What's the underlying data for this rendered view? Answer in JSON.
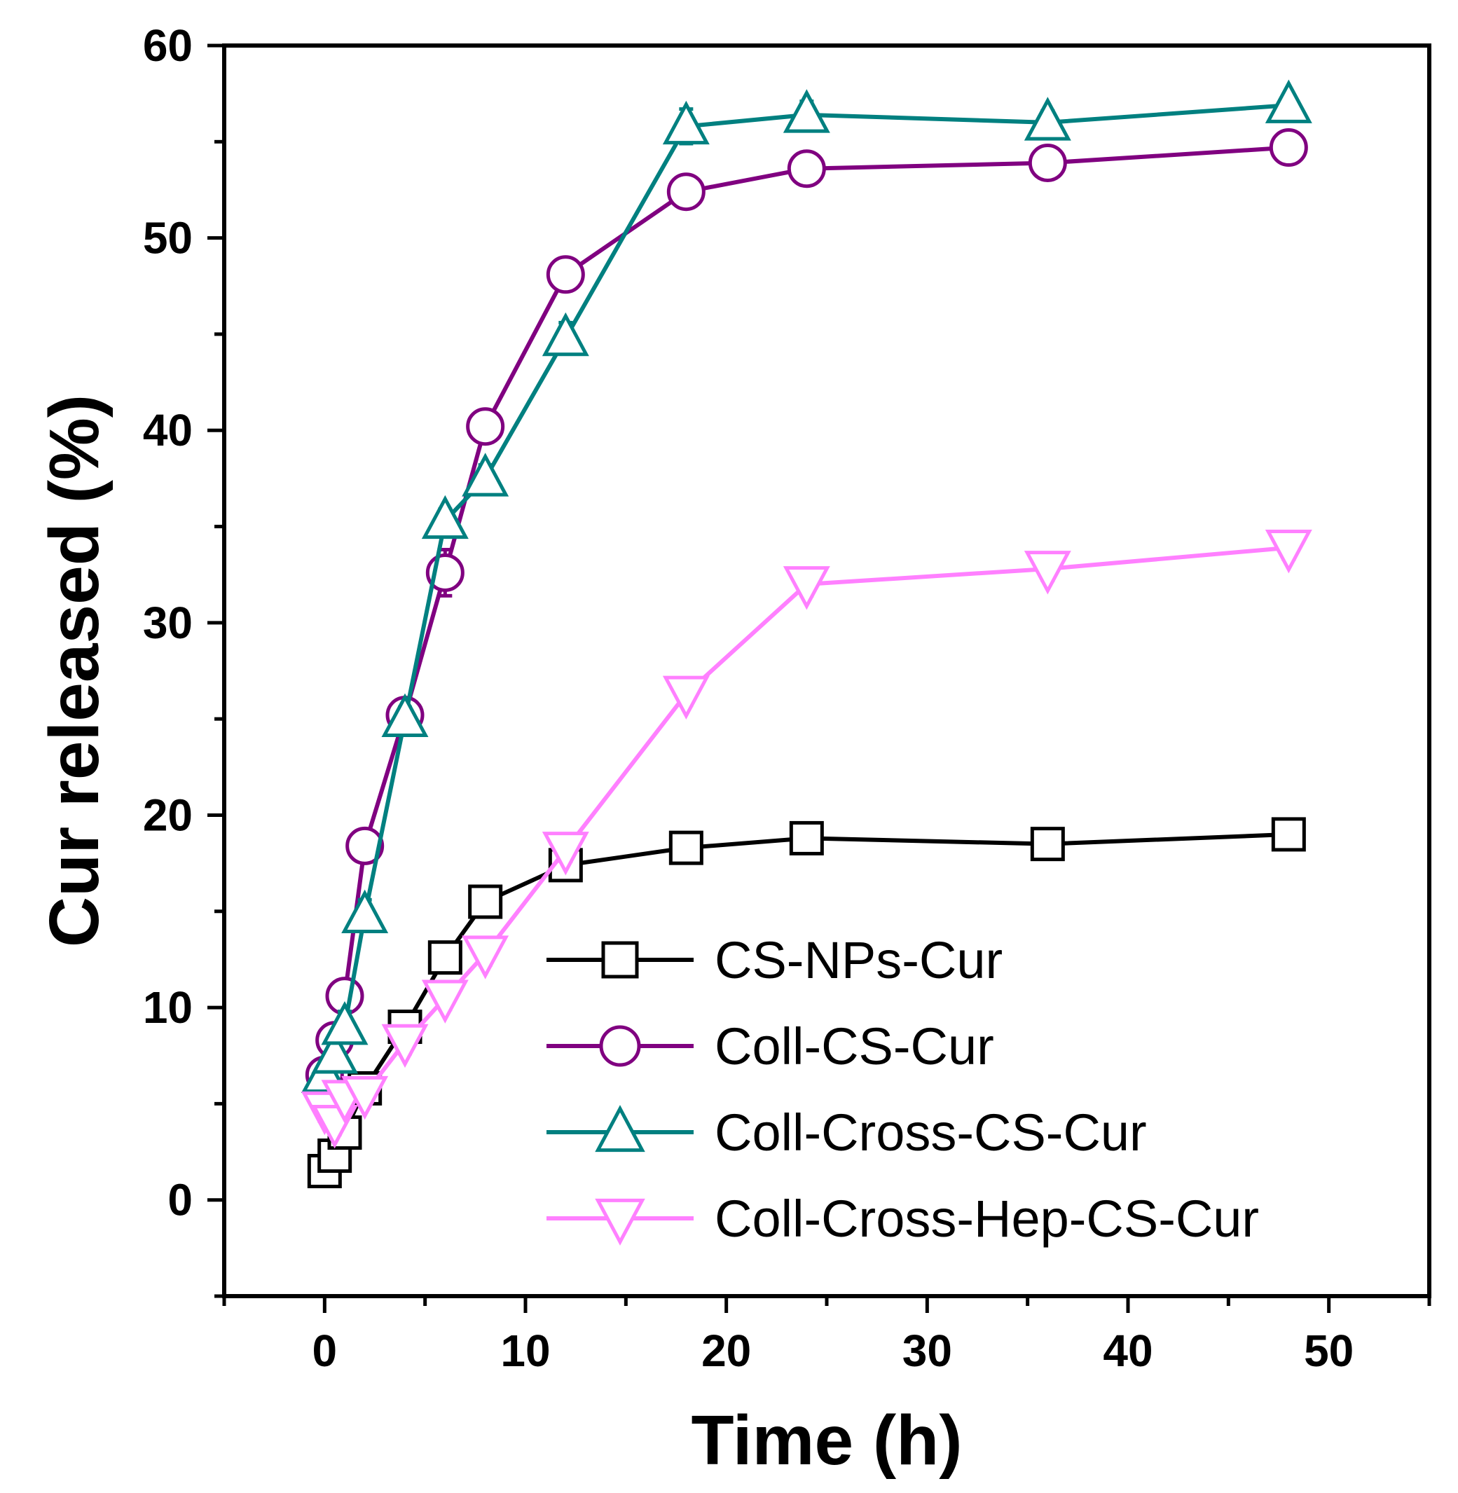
{
  "chart_data": {
    "type": "line",
    "title": "",
    "xlabel": "Time (h)",
    "ylabel": "Cur released (%)",
    "xlim": [
      -5,
      55
    ],
    "ylim": [
      -5,
      60
    ],
    "xticks": [
      0,
      10,
      20,
      30,
      40,
      50
    ],
    "yticks": [
      0,
      10,
      20,
      30,
      40,
      50,
      60
    ],
    "grid": false,
    "legend_position": "bottom-right",
    "x": [
      0,
      0.5,
      1,
      2,
      4,
      6,
      8,
      12,
      18,
      24,
      36,
      48
    ],
    "series": [
      {
        "name": "CS-NPs-Cur",
        "marker": "square",
        "color": "#000000",
        "values": [
          1.5,
          2.3,
          3.5,
          5.8,
          9.0,
          12.6,
          15.5,
          17.4,
          18.3,
          18.8,
          18.5,
          19.0
        ],
        "errors": [
          0.5,
          0.6,
          0.6,
          0.5,
          0.6,
          0.6,
          0.6,
          0.5,
          0.5,
          0.5,
          0.5,
          0.5
        ]
      },
      {
        "name": "Coll-CS-Cur",
        "marker": "circle",
        "color": "#800080",
        "values": [
          6.5,
          8.3,
          10.6,
          18.4,
          25.2,
          32.6,
          40.2,
          48.1,
          52.4,
          53.6,
          53.9,
          54.7
        ],
        "errors": [
          0.6,
          0.6,
          0.6,
          0.6,
          0.6,
          1.2,
          0.7,
          0.6,
          0.6,
          0.7,
          0.6,
          0.5
        ]
      },
      {
        "name": "Coll-Cross-CS-Cur",
        "marker": "triangle-up",
        "color": "#008080",
        "values": [
          6.5,
          7.5,
          9.0,
          14.8,
          25.0,
          35.3,
          37.5,
          44.8,
          55.8,
          56.4,
          56.0,
          56.9
        ],
        "errors": [
          0.6,
          0.6,
          0.8,
          0.8,
          0.6,
          0.6,
          0.7,
          0.8,
          0.9,
          0.7,
          0.6,
          0.5
        ]
      },
      {
        "name": "Coll-Cross-Hep-CS-Cur",
        "marker": "triangle-down",
        "color": "#FF80FF",
        "values": [
          4.7,
          4.0,
          5.3,
          5.5,
          8.2,
          10.5,
          12.8,
          18.2,
          26.3,
          32.0,
          32.8,
          33.9
        ],
        "errors": [
          0.6,
          0.6,
          0.5,
          0.5,
          0.6,
          0.6,
          0.6,
          0.6,
          0.6,
          0.6,
          0.6,
          0.6
        ]
      }
    ]
  }
}
